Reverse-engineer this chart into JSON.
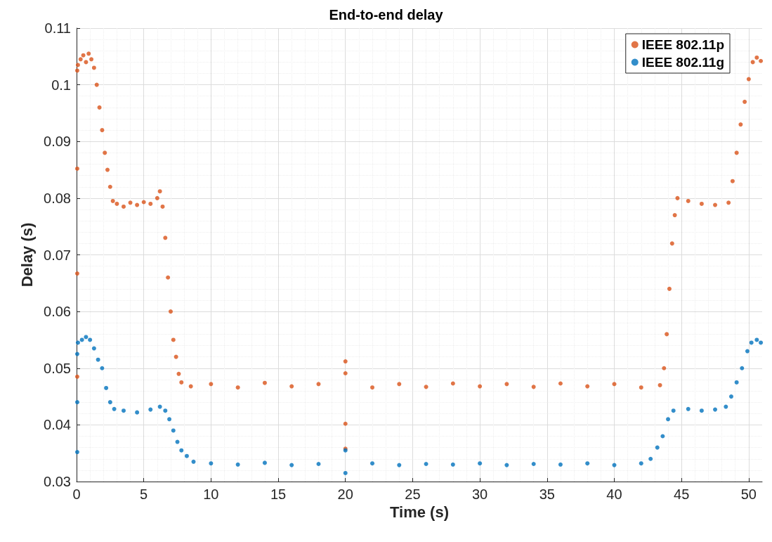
{
  "chart_data": {
    "type": "scatter",
    "title": "End-to-end delay",
    "xlabel": "Time (s)",
    "ylabel": "Delay (s)",
    "xlim": [
      0,
      51
    ],
    "xticks": [
      0,
      5,
      10,
      15,
      20,
      25,
      30,
      35,
      40,
      45,
      50
    ],
    "ylim": [
      0.03,
      0.11
    ],
    "yticks": [
      0.03,
      0.04,
      0.05,
      0.06,
      0.07,
      0.08,
      0.09,
      0.1,
      0.11
    ],
    "grid": true,
    "legend": "top right",
    "marker": "circle",
    "series": [
      {
        "name": "IEEE 802.11p",
        "color": "#d95319",
        "x": [
          0.05,
          0.05,
          0.05,
          0.05,
          0.1,
          0.3,
          0.5,
          0.7,
          0.9,
          1.1,
          1.3,
          1.5,
          1.7,
          1.9,
          2.1,
          2.3,
          2.5,
          2.7,
          3.0,
          3.5,
          4.0,
          4.5,
          5.0,
          5.5,
          6.0,
          6.2,
          6.4,
          6.6,
          6.8,
          7.0,
          7.2,
          7.4,
          7.6,
          7.8,
          8.5,
          10,
          12,
          14,
          16,
          18,
          20,
          20,
          20,
          20,
          22,
          24,
          26,
          28,
          30,
          32,
          34,
          36,
          38,
          40,
          42,
          43.4,
          43.7,
          43.9,
          44.1,
          44.3,
          44.5,
          44.7,
          45.5,
          46.5,
          47.5,
          48.5,
          48.8,
          49.1,
          49.4,
          49.7,
          50.0,
          50.3,
          50.6,
          50.9
        ],
        "values": [
          0.1025,
          0.0852,
          0.0667,
          0.0485,
          0.1035,
          0.1045,
          0.1052,
          0.104,
          0.1055,
          0.1045,
          0.103,
          0.1,
          0.096,
          0.092,
          0.088,
          0.085,
          0.082,
          0.0795,
          0.079,
          0.0785,
          0.0792,
          0.0788,
          0.0793,
          0.079,
          0.08,
          0.0812,
          0.0785,
          0.073,
          0.066,
          0.06,
          0.055,
          0.052,
          0.049,
          0.0475,
          0.0468,
          0.0472,
          0.0466,
          0.0474,
          0.0468,
          0.0472,
          0.0512,
          0.0491,
          0.0402,
          0.0358,
          0.0466,
          0.0472,
          0.0467,
          0.0473,
          0.0468,
          0.0472,
          0.0467,
          0.0473,
          0.0468,
          0.0472,
          0.0466,
          0.047,
          0.05,
          0.056,
          0.064,
          0.072,
          0.077,
          0.08,
          0.0795,
          0.079,
          0.0788,
          0.0792,
          0.083,
          0.088,
          0.093,
          0.097,
          0.101,
          0.104,
          0.1048,
          0.1042
        ]
      },
      {
        "name": "IEEE 802.11g",
        "color": "#0072bd",
        "x": [
          0.05,
          0.05,
          0.05,
          0.1,
          0.4,
          0.7,
          1.0,
          1.3,
          1.6,
          1.9,
          2.2,
          2.5,
          2.8,
          3.5,
          4.5,
          5.5,
          6.2,
          6.6,
          6.9,
          7.2,
          7.5,
          7.8,
          8.2,
          8.7,
          10,
          12,
          14,
          16,
          18,
          20,
          20,
          22,
          24,
          26,
          28,
          30,
          32,
          34,
          36,
          38,
          40,
          42,
          42.7,
          43.2,
          43.6,
          44.0,
          44.4,
          45.5,
          46.5,
          47.5,
          48.3,
          48.7,
          49.1,
          49.5,
          49.9,
          50.2,
          50.6,
          50.9
        ],
        "values": [
          0.0525,
          0.044,
          0.0352,
          0.0545,
          0.055,
          0.0555,
          0.055,
          0.0535,
          0.0515,
          0.05,
          0.0465,
          0.044,
          0.0428,
          0.0425,
          0.0422,
          0.0427,
          0.0432,
          0.0425,
          0.041,
          0.039,
          0.037,
          0.0355,
          0.0345,
          0.0335,
          0.0332,
          0.033,
          0.0333,
          0.0329,
          0.0331,
          0.0315,
          0.0355,
          0.0332,
          0.0329,
          0.0331,
          0.033,
          0.0332,
          0.0329,
          0.0331,
          0.033,
          0.0332,
          0.0329,
          0.0332,
          0.034,
          0.036,
          0.038,
          0.041,
          0.0425,
          0.0428,
          0.0425,
          0.0427,
          0.0432,
          0.045,
          0.0475,
          0.05,
          0.053,
          0.0545,
          0.055,
          0.0545
        ]
      }
    ]
  }
}
